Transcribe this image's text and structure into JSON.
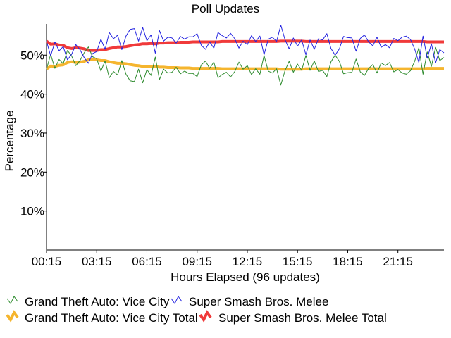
{
  "chart_data": {
    "type": "line",
    "title": "Poll Updates",
    "xlabel": "Hours Elapsed (96 updates)",
    "ylabel": "Percentage",
    "x_ticks": [
      "00:15",
      "03:15",
      "06:15",
      "09:15",
      "12:15",
      "15:15",
      "18:15",
      "21:15"
    ],
    "y_ticks": [
      "10%",
      "20%",
      "30%",
      "40%",
      "50%"
    ],
    "y_tick_values": [
      10,
      20,
      30,
      40,
      50
    ],
    "ylim": [
      0,
      58
    ],
    "grid": false,
    "legend_position": "bottom",
    "n_updates": 96,
    "series": [
      {
        "name": "Grand Theft Auto: Vice City",
        "color": "#2e8b2e",
        "values": [
          46.4,
          50.2,
          46.6,
          48.9,
          47.8,
          51.2,
          49.8,
          47.3,
          48.6,
          50.6,
          52.1,
          49.6,
          49.1,
          45.9,
          48.5,
          44.2,
          45.8,
          44.9,
          48.6,
          45.1,
          43.4,
          43.2,
          46.4,
          42.9,
          46.3,
          44.8,
          49.5,
          43.7,
          46.4,
          45.4,
          45.6,
          46.9,
          45.2,
          45.9,
          45.3,
          45.3,
          44.5,
          47.5,
          48.5,
          46.6,
          48.2,
          44.2,
          45.0,
          45.6,
          44.4,
          45.8,
          48.2,
          46.4,
          47.3,
          45.0,
          46.5,
          45.1,
          49.9,
          45.9,
          45.4,
          46.5,
          42.3,
          46.0,
          48.4,
          45.6,
          47.7,
          46.1,
          49.9,
          46.1,
          48.5,
          45.8,
          46.1,
          44.5,
          48.3,
          50.0,
          48.4,
          45.2,
          45.5,
          45.6,
          49.0,
          45.7,
          44.8,
          46.6,
          47.6,
          45.4,
          48.0,
          47.3,
          48.1,
          45.7,
          46.3,
          45.4,
          45.1,
          46.0,
          48.4,
          51.9,
          45.1,
          50.8,
          47.1,
          52.0,
          48.6,
          49.4
        ]
      },
      {
        "name": "Super Smash Bros. Melee",
        "color": "#2424e0",
        "values": [
          53.6,
          49.8,
          53.4,
          51.1,
          52.2,
          48.8,
          50.2,
          52.7,
          51.4,
          49.4,
          47.9,
          50.4,
          50.9,
          54.1,
          51.5,
          55.8,
          54.2,
          55.1,
          51.4,
          54.9,
          56.6,
          56.8,
          53.6,
          57.1,
          53.7,
          55.2,
          50.5,
          56.3,
          53.6,
          54.6,
          54.4,
          53.1,
          54.8,
          54.1,
          54.7,
          54.7,
          55.5,
          52.5,
          51.5,
          53.4,
          51.8,
          55.8,
          55.0,
          54.4,
          55.6,
          54.2,
          51.8,
          53.6,
          52.7,
          55.0,
          53.5,
          54.9,
          50.1,
          54.1,
          54.6,
          53.5,
          57.7,
          54.0,
          51.6,
          54.4,
          52.3,
          53.9,
          50.1,
          53.9,
          51.5,
          54.2,
          53.9,
          55.5,
          51.7,
          50.0,
          51.6,
          54.8,
          54.5,
          54.4,
          51.0,
          54.3,
          55.2,
          53.4,
          52.4,
          54.6,
          52.0,
          52.7,
          51.9,
          54.3,
          53.7,
          54.6,
          54.9,
          54.0,
          51.6,
          48.1,
          54.9,
          49.2,
          52.9,
          48.0,
          51.4,
          50.6
        ]
      },
      {
        "name": "Grand Theft Auto: Vice City Total",
        "color": "#f5b52e",
        "values": [
          46.4,
          47.2,
          47.1,
          47.4,
          47.5,
          48.1,
          48.3,
          48.1,
          48.2,
          48.4,
          48.8,
          48.8,
          48.8,
          48.6,
          48.6,
          48.3,
          48.1,
          47.9,
          47.9,
          47.8,
          47.6,
          47.4,
          47.3,
          47.1,
          47.1,
          47.0,
          47.1,
          46.9,
          46.9,
          46.8,
          46.8,
          46.8,
          46.7,
          46.7,
          46.7,
          46.6,
          46.6,
          46.6,
          46.6,
          46.6,
          46.6,
          46.6,
          46.5,
          46.5,
          46.5,
          46.5,
          46.5,
          46.5,
          46.5,
          46.5,
          46.5,
          46.5,
          46.5,
          46.5,
          46.5,
          46.5,
          46.4,
          46.4,
          46.4,
          46.4,
          46.4,
          46.4,
          46.5,
          46.5,
          46.5,
          46.5,
          46.5,
          46.5,
          46.5,
          46.5,
          46.5,
          46.5,
          46.5,
          46.5,
          46.5,
          46.5,
          46.5,
          46.5,
          46.5,
          46.5,
          46.5,
          46.5,
          46.5,
          46.5,
          46.5,
          46.5,
          46.5,
          46.5,
          46.5,
          46.5,
          46.5,
          46.6,
          46.6,
          46.6,
          46.6,
          46.6
        ]
      },
      {
        "name": "Super Smash Bros. Melee Total",
        "color": "#f03a3a",
        "values": [
          53.6,
          52.8,
          52.9,
          52.6,
          52.5,
          51.9,
          51.7,
          51.9,
          51.8,
          51.6,
          51.2,
          51.2,
          51.2,
          51.4,
          51.4,
          51.7,
          51.9,
          52.1,
          52.1,
          52.2,
          52.4,
          52.6,
          52.7,
          52.9,
          52.9,
          53.0,
          52.9,
          53.1,
          53.1,
          53.2,
          53.2,
          53.2,
          53.3,
          53.3,
          53.3,
          53.4,
          53.4,
          53.4,
          53.4,
          53.4,
          53.4,
          53.4,
          53.5,
          53.5,
          53.5,
          53.5,
          53.5,
          53.5,
          53.5,
          53.5,
          53.5,
          53.5,
          53.5,
          53.5,
          53.5,
          53.5,
          53.6,
          53.6,
          53.6,
          53.6,
          53.6,
          53.6,
          53.5,
          53.5,
          53.5,
          53.5,
          53.5,
          53.5,
          53.5,
          53.5,
          53.5,
          53.5,
          53.5,
          53.5,
          53.5,
          53.5,
          53.5,
          53.5,
          53.5,
          53.5,
          53.5,
          53.5,
          53.5,
          53.5,
          53.5,
          53.5,
          53.5,
          53.5,
          53.5,
          53.5,
          53.5,
          53.4,
          53.4,
          53.4,
          53.4,
          53.4
        ]
      }
    ]
  }
}
